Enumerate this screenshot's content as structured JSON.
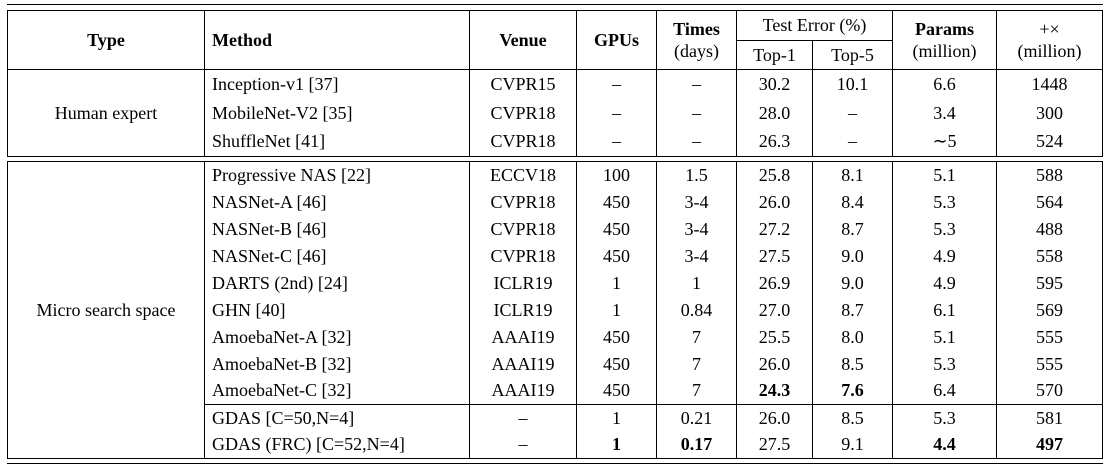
{
  "colors": {
    "border": "#000000",
    "text": "#000000",
    "background": "#ffffff"
  },
  "table": {
    "header": {
      "type": "Type",
      "method": "Method",
      "venue": "Venue",
      "gpus": "GPUs",
      "times_line1": "Times",
      "times_line2": "(days)",
      "test_error": "Test Error (%)",
      "top1": "Top-1",
      "top5": "Top-5",
      "params_line1": "Params",
      "params_line2": "(million)",
      "madds_line1": "+×",
      "madds_line2": "(million)"
    },
    "sections": [
      {
        "type": "Human expert",
        "rows": [
          {
            "method": "Inception-v1 [37]",
            "venue": "CVPR15",
            "gpus": "–",
            "times": "–",
            "top1": "30.2",
            "top5": "10.1",
            "params": "6.6",
            "madds": "1448",
            "bold": []
          },
          {
            "method": "MobileNet-V2 [35]",
            "venue": "CVPR18",
            "gpus": "–",
            "times": "–",
            "top1": "28.0",
            "top5": "–",
            "params": "3.4",
            "madds": "300",
            "bold": []
          },
          {
            "method": "ShuffleNet [41]",
            "venue": "CVPR18",
            "gpus": "–",
            "times": "–",
            "top1": "26.3",
            "top5": "–",
            "params": "∼5",
            "madds": "524",
            "bold": []
          }
        ]
      },
      {
        "type": "Micro search space",
        "divider_before": 9,
        "rows": [
          {
            "method": "Progressive NAS [22]",
            "venue": "ECCV18",
            "gpus": "100",
            "times": "1.5",
            "top1": "25.8",
            "top5": "8.1",
            "params": "5.1",
            "madds": "588",
            "bold": []
          },
          {
            "method": "NASNet-A [46]",
            "venue": "CVPR18",
            "gpus": "450",
            "times": "3-4",
            "top1": "26.0",
            "top5": "8.4",
            "params": "5.3",
            "madds": "564",
            "bold": []
          },
          {
            "method": "NASNet-B [46]",
            "venue": "CVPR18",
            "gpus": "450",
            "times": "3-4",
            "top1": "27.2",
            "top5": "8.7",
            "params": "5.3",
            "madds": "488",
            "bold": []
          },
          {
            "method": "NASNet-C [46]",
            "venue": "CVPR18",
            "gpus": "450",
            "times": "3-4",
            "top1": "27.5",
            "top5": "9.0",
            "params": "4.9",
            "madds": "558",
            "bold": []
          },
          {
            "method": "DARTS (2nd) [24]",
            "venue": "ICLR19",
            "gpus": "1",
            "times": "1",
            "top1": "26.9",
            "top5": "9.0",
            "params": "4.9",
            "madds": "595",
            "bold": []
          },
          {
            "method": "GHN [40]",
            "venue": "ICLR19",
            "gpus": "1",
            "times": "0.84",
            "top1": "27.0",
            "top5": "8.7",
            "params": "6.1",
            "madds": "569",
            "bold": []
          },
          {
            "method": "AmoebaNet-A [32]",
            "venue": "AAAI19",
            "gpus": "450",
            "times": "7",
            "top1": "25.5",
            "top5": "8.0",
            "params": "5.1",
            "madds": "555",
            "bold": []
          },
          {
            "method": "AmoebaNet-B [32]",
            "venue": "AAAI19",
            "gpus": "450",
            "times": "7",
            "top1": "26.0",
            "top5": "8.5",
            "params": "5.3",
            "madds": "555",
            "bold": []
          },
          {
            "method": "AmoebaNet-C [32]",
            "venue": "AAAI19",
            "gpus": "450",
            "times": "7",
            "top1": "24.3",
            "top5": "7.6",
            "params": "6.4",
            "madds": "570",
            "bold": [
              "top1",
              "top5"
            ]
          },
          {
            "method": "GDAS [C=50,N=4]",
            "venue": "–",
            "gpus": "1",
            "times": "0.21",
            "top1": "26.0",
            "top5": "8.5",
            "params": "5.3",
            "madds": "581",
            "bold": []
          },
          {
            "method": "GDAS (FRC) [C=52,N=4]",
            "venue": "–",
            "gpus": "1",
            "times": "0.17",
            "top1": "27.5",
            "top5": "9.1",
            "params": "4.4",
            "madds": "497",
            "bold": [
              "gpus",
              "times",
              "params",
              "madds"
            ]
          }
        ]
      }
    ]
  }
}
